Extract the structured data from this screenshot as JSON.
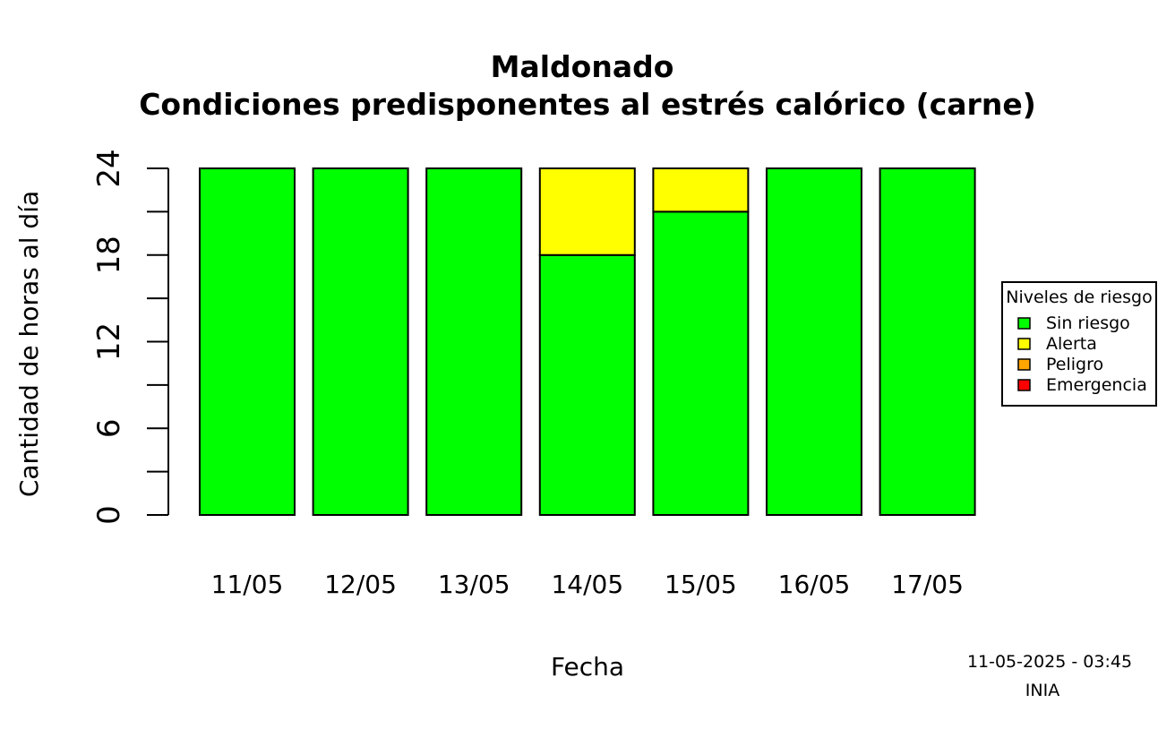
{
  "chart_data": {
    "type": "bar",
    "stacked": true,
    "title": "Maldonado",
    "subtitle": "Condiciones predisponentes al estrés calórico (carne)",
    "xlabel": "Fecha",
    "ylabel": "Cantidad de horas al día",
    "categories": [
      "11/05",
      "12/05",
      "13/05",
      "14/05",
      "15/05",
      "16/05",
      "17/05"
    ],
    "ylim": [
      0,
      24
    ],
    "yticks": [
      0,
      3,
      6,
      9,
      12,
      15,
      18,
      21,
      24
    ],
    "ytick_labels": [
      "0",
      "6",
      "12",
      "18",
      "24"
    ],
    "grid": false,
    "legend": {
      "title": "Niveles de riesgo",
      "placement": "right",
      "entries": [
        {
          "label": "Sin riesgo",
          "color": "#00ff00"
        },
        {
          "label": "Alerta",
          "color": "#ffff00"
        },
        {
          "label": "Peligro",
          "color": "#ffa500"
        },
        {
          "label": "Emergencia",
          "color": "#ff0000"
        }
      ]
    },
    "series": [
      {
        "name": "Sin riesgo",
        "color": "#00ff00",
        "values": [
          24,
          24,
          24,
          18,
          21,
          24,
          24
        ]
      },
      {
        "name": "Alerta",
        "color": "#ffff00",
        "values": [
          0,
          0,
          0,
          6,
          3,
          0,
          0
        ]
      },
      {
        "name": "Peligro",
        "color": "#ffa500",
        "values": [
          0,
          0,
          0,
          0,
          0,
          0,
          0
        ]
      },
      {
        "name": "Emergencia",
        "color": "#ff0000",
        "values": [
          0,
          0,
          0,
          0,
          0,
          0,
          0
        ]
      }
    ],
    "footer": {
      "timestamp": "11-05-2025 - 03:45",
      "source": "INIA"
    }
  }
}
